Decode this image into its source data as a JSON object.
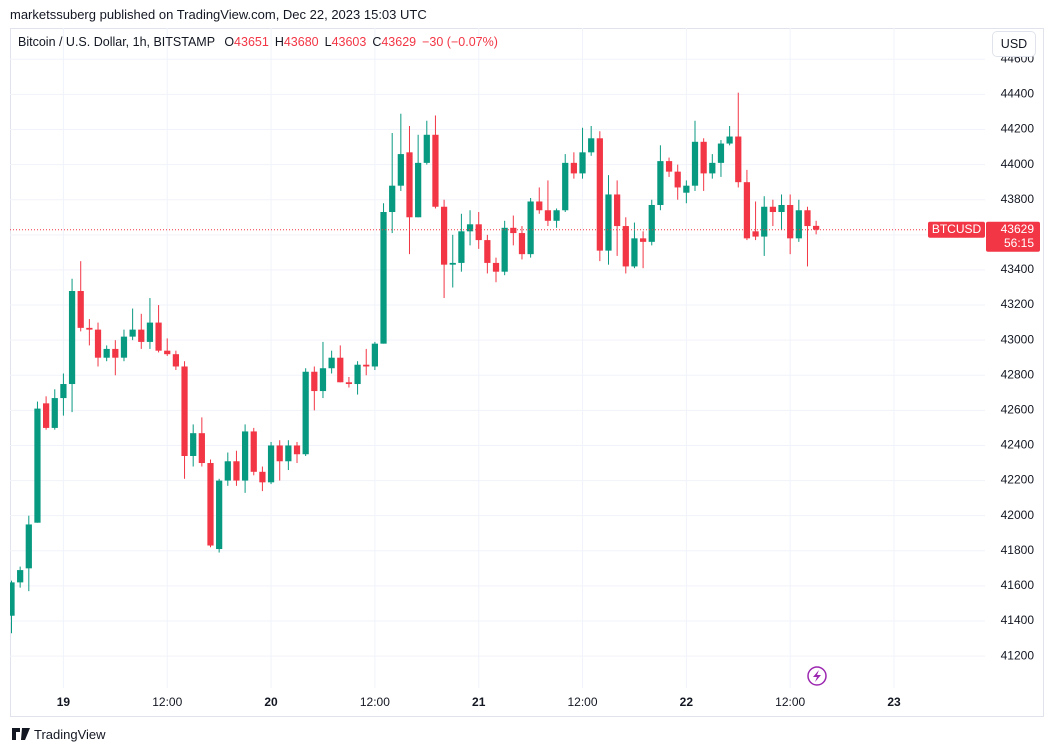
{
  "chart_data": {
    "type": "candlestick",
    "header": "marketssuberg published on TradingView.com, Dec 22, 2023 15:03 UTC",
    "symbol_title": "Bitcoin / U.S. Dollar, 1h, BITSTAMP",
    "ohlc_labels": [
      "O",
      "H",
      "L",
      "C"
    ],
    "change_label": "−30 (−0.07%)",
    "currency": "USD",
    "symbol": "BTCUSD",
    "countdown": "56:15",
    "brand": "TradingView",
    "up_color": "#089981",
    "down_color": "#f23645",
    "grid": true,
    "categories": [
      null,
      null,
      null,
      null,
      null,
      null,
      "19",
      null,
      null,
      null,
      null,
      null,
      null,
      null,
      null,
      null,
      null,
      null,
      "12:00",
      null,
      null,
      null,
      null,
      null,
      null,
      null,
      null,
      null,
      null,
      null,
      "20",
      null,
      null,
      null,
      null,
      null,
      null,
      null,
      null,
      null,
      null,
      null,
      "12:00",
      null,
      null,
      null,
      null,
      null,
      null,
      null,
      null,
      null,
      null,
      null,
      "21",
      null,
      null,
      null,
      null,
      null,
      null,
      null,
      null,
      null,
      null,
      null,
      "12:00",
      null,
      null,
      null,
      null,
      null,
      null,
      null,
      null,
      null,
      null,
      null,
      "22",
      null,
      null,
      null,
      null,
      null,
      null,
      null,
      null,
      null,
      null,
      null,
      "12:00",
      null,
      null,
      null,
      null,
      null,
      null,
      null,
      null,
      null,
      null,
      null,
      "23"
    ],
    "open": [
      41430,
      41620,
      41700,
      41960,
      42640,
      42500,
      42670,
      42750,
      43280,
      43070,
      43060,
      42900,
      42950,
      42900,
      43020,
      43060,
      42990,
      43100,
      42940,
      42920,
      42850,
      42340,
      42470,
      42300,
      41810,
      42200,
      42310,
      42200,
      42480,
      42250,
      42190,
      42400,
      42310,
      42400,
      42350,
      42820,
      42710,
      42840,
      42900,
      42760,
      42750,
      42860,
      42850,
      42980,
      43730,
      43880,
      44070,
      43700,
      44010,
      44170,
      43760,
      43430,
      43440,
      43620,
      43660,
      43570,
      43440,
      43390,
      43640,
      43610,
      43490,
      43790,
      43740,
      43680,
      43740,
      44010,
      43950,
      44070,
      44150,
      43510,
      43830,
      43650,
      43420,
      43580,
      43560,
      43770,
      44020,
      43960,
      43840,
      43880,
      44130,
      43950,
      44010,
      44120,
      44160,
      43900,
      43620,
      43590,
      43760,
      43730,
      43770,
      43580,
      43740,
      43651,
      null,
      null,
      null,
      null,
      null,
      null,
      null,
      null,
      null
    ],
    "high": [
      41630,
      41710,
      42000,
      42650,
      42680,
      42720,
      42810,
      43350,
      43450,
      43120,
      43100,
      42970,
      43000,
      43060,
      43180,
      43150,
      43240,
      43200,
      43010,
      42940,
      42880,
      42520,
      42560,
      42320,
      42210,
      42360,
      42370,
      42520,
      42500,
      42280,
      42420,
      42430,
      42430,
      42420,
      42840,
      42850,
      42990,
      42940,
      42970,
      42790,
      42880,
      42950,
      42990,
      43780,
      44180,
      44290,
      44220,
      44170,
      44250,
      44280,
      43800,
      43600,
      43720,
      43740,
      43730,
      43600,
      43470,
      43680,
      43710,
      43650,
      43810,
      43870,
      43910,
      43750,
      44060,
      44070,
      44210,
      44220,
      44190,
      43940,
      43910,
      43700,
      43670,
      43620,
      43800,
      44110,
      44040,
      44000,
      43910,
      44250,
      44150,
      44060,
      44140,
      44220,
      44410,
      43970,
      43790,
      43820,
      43800,
      43830,
      43830,
      43800,
      43760,
      43680,
      null,
      null,
      null,
      null,
      null,
      null,
      null,
      null,
      null
    ],
    "low": [
      41330,
      41590,
      41570,
      41960,
      42490,
      42490,
      42570,
      42590,
      43050,
      42970,
      42850,
      42880,
      42800,
      42880,
      43000,
      42950,
      42950,
      42930,
      42910,
      42830,
      42210,
      42280,
      42280,
      41820,
      41790,
      42170,
      42170,
      42130,
      42230,
      42140,
      42180,
      42200,
      42260,
      42300,
      42340,
      42600,
      42670,
      42810,
      42760,
      42730,
      42690,
      42800,
      42830,
      42980,
      43610,
      43850,
      43490,
      43700,
      44000,
      43750,
      43240,
      43300,
      43390,
      43540,
      43520,
      43380,
      43330,
      43370,
      43540,
      43460,
      43470,
      43720,
      43650,
      43640,
      43730,
      43920,
      43920,
      44050,
      43450,
      43430,
      43480,
      43380,
      43410,
      43410,
      43540,
      43740,
      43930,
      43800,
      43780,
      43850,
      43850,
      43920,
      43930,
      44110,
      43870,
      43570,
      43570,
      43480,
      43650,
      43630,
      43490,
      43560,
      43420,
      43603,
      null,
      null,
      null,
      null,
      null,
      null,
      null,
      null,
      null
    ],
    "close": [
      41620,
      41690,
      41950,
      42610,
      42500,
      42670,
      42750,
      43280,
      43070,
      43060,
      42900,
      42950,
      42900,
      43020,
      43060,
      42990,
      43100,
      42940,
      42920,
      42850,
      42340,
      42470,
      42300,
      41830,
      42200,
      42310,
      42200,
      42480,
      42250,
      42190,
      42400,
      42310,
      42400,
      42350,
      42820,
      42710,
      42840,
      42900,
      42760,
      42750,
      42860,
      42850,
      42980,
      43730,
      43880,
      44060,
      43700,
      44010,
      44170,
      43760,
      43430,
      43440,
      43620,
      43660,
      43570,
      43440,
      43390,
      43640,
      43610,
      43490,
      43790,
      43740,
      43680,
      43740,
      44010,
      43950,
      44070,
      44150,
      43510,
      43830,
      43650,
      43420,
      43580,
      43560,
      43770,
      44020,
      43960,
      43870,
      43880,
      44130,
      43950,
      44010,
      44120,
      44160,
      43900,
      43580,
      43590,
      43760,
      43730,
      43770,
      43580,
      43740,
      43650,
      43629,
      null,
      null,
      null,
      null,
      null,
      null,
      null,
      null,
      null
    ],
    "ylim": [
      41020,
      44600
    ],
    "yticks": [
      41200,
      41400,
      41600,
      41800,
      42000,
      42200,
      42400,
      42600,
      42800,
      43000,
      43200,
      43400,
      43600,
      43800,
      44000,
      44200,
      44400,
      44600
    ]
  }
}
